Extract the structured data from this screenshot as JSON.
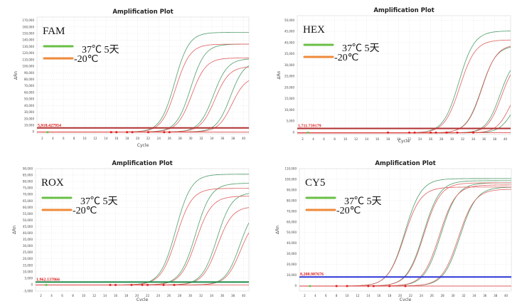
{
  "chart_data": [
    {
      "type": "line",
      "title": "Amplification Plot",
      "dye": "FAM",
      "xlabel": "Cycle",
      "ylabel": "ΔRn",
      "xlim": [
        1,
        41
      ],
      "ylim": [
        -3000,
        175000
      ],
      "xticks": [
        2,
        4,
        6,
        8,
        10,
        12,
        14,
        16,
        18,
        20,
        22,
        24,
        26,
        28,
        30,
        32,
        34,
        36,
        38,
        40
      ],
      "yticks": [
        0,
        10000,
        20000,
        30000,
        40000,
        50000,
        60000,
        70000,
        80000,
        90000,
        100000,
        110000,
        120000,
        130000,
        140000,
        150000,
        160000,
        170000
      ],
      "ytick_labels": [
        "0",
        "10,000",
        "20,000",
        "30,000",
        "40,000",
        "50,000",
        "60,000",
        "70,000",
        "80,000",
        "90,000",
        "100,000",
        "110,000",
        "120,000",
        "130,000",
        "140,000",
        "150,000",
        "160,000",
        "170,000"
      ],
      "grid": true,
      "threshold": {
        "label": "5,918.427954",
        "value": 5918.427954,
        "color": "#b03030"
      },
      "legend": [
        {
          "label": "37℃ 5天",
          "color": "#6abf45"
        },
        {
          "label": "-20℃",
          "color": "#ef8a3a"
        }
      ],
      "series": [
        {
          "name": "37℃ 5天",
          "color": "#4f9e6a",
          "curves": [
            {
              "mid": 27.0,
              "plateau": 152000,
              "slope": 1.35
            },
            {
              "mid": 30.0,
              "plateau": 134000,
              "slope": 1.35
            },
            {
              "mid": 34.3,
              "plateau": 112000,
              "slope": 1.35
            },
            {
              "mid": 37.5,
              "plateau": 108000,
              "slope": 1.3
            }
          ]
        },
        {
          "name": "-20℃",
          "color": "#e06060",
          "curves": [
            {
              "mid": 27.2,
              "plateau": 134000,
              "slope": 1.35
            },
            {
              "mid": 30.2,
              "plateau": 113000,
              "slope": 1.35
            },
            {
              "mid": 34.6,
              "plateau": 100000,
              "slope": 1.35
            },
            {
              "mid": 37.8,
              "plateau": 85000,
              "slope": 1.3
            }
          ]
        }
      ],
      "baseline_markers_x": [
        3,
        15,
        16,
        18,
        19,
        22,
        25,
        26
      ]
    },
    {
      "type": "line",
      "title": "Amplification Plot",
      "dye": "HEX",
      "xlabel": "Cycle",
      "ylabel": "ΔRn",
      "xlim": [
        1,
        41
      ],
      "ylim": [
        -1000,
        52000
      ],
      "xticks": [
        2,
        4,
        6,
        8,
        10,
        12,
        14,
        16,
        18,
        20,
        22,
        24,
        26,
        28,
        30,
        32,
        34,
        36,
        38,
        40
      ],
      "yticks": [
        0,
        5000,
        10000,
        15000,
        20000,
        25000,
        30000,
        35000,
        40000,
        45000,
        50000
      ],
      "ytick_labels": [
        "0",
        "5,000",
        "10,000",
        "15,000",
        "20,000",
        "25,000",
        "30,000",
        "35,000",
        "40,000",
        "45,000",
        "50,000"
      ],
      "grid": true,
      "threshold": {
        "label": "1,711.739179",
        "value": 1711.739179,
        "color": "#b03030"
      },
      "legend": [
        {
          "label": "37℃ 5天",
          "color": "#6abf45"
        },
        {
          "label": "-20℃",
          "color": "#ef8a3a"
        }
      ],
      "series": [
        {
          "name": "37℃ 5天",
          "color": "#4f9e6a",
          "curves": [
            {
              "mid": 31.3,
              "plateau": 45500,
              "slope": 1.45
            },
            {
              "mid": 35.5,
              "plateau": 39000,
              "slope": 1.4
            },
            {
              "mid": 39.0,
              "plateau": 34000,
              "slope": 1.3
            },
            {
              "mid": 41.5,
              "plateau": 20000,
              "slope": 1.3
            }
          ]
        },
        {
          "name": "-20℃",
          "color": "#e06060",
          "curves": [
            {
              "mid": 31.5,
              "plateau": 41500,
              "slope": 1.45
            },
            {
              "mid": 35.6,
              "plateau": 39500,
              "slope": 1.4
            },
            {
              "mid": 39.3,
              "plateau": 33000,
              "slope": 1.3
            },
            {
              "mid": 41.0,
              "plateau": 25000,
              "slope": 1.3
            }
          ]
        }
      ],
      "baseline_markers_x": [
        3,
        18,
        22,
        23,
        26,
        27,
        29,
        31,
        34
      ]
    },
    {
      "type": "line",
      "title": "Amplification Plot",
      "dye": "ROX",
      "xlabel": "Cycle",
      "ylabel": "ΔRn",
      "xlim": [
        1,
        41
      ],
      "ylim": [
        -5000,
        90000
      ],
      "xticks": [
        2,
        4,
        6,
        8,
        10,
        12,
        14,
        16,
        18,
        20,
        22,
        24,
        26,
        28,
        30,
        32,
        34,
        36,
        38,
        40
      ],
      "yticks": [
        -5000,
        0,
        5000,
        10000,
        15000,
        20000,
        25000,
        30000,
        35000,
        40000,
        45000,
        50000,
        55000,
        60000,
        65000,
        70000,
        75000,
        80000,
        85000,
        90000
      ],
      "ytick_labels": [
        "-5,000",
        "0",
        "5,000",
        "10,000",
        "15,000",
        "20,000",
        "25,000",
        "30,000",
        "35,000",
        "40,000",
        "45,000",
        "50,000",
        "55,000",
        "60,000",
        "65,000",
        "70,000",
        "75,000",
        "80,000",
        "85,000",
        "90,000"
      ],
      "grid": true,
      "threshold": {
        "label": "1,962.137866",
        "value": 1962.137866,
        "color": "#1f8a4a"
      },
      "legend": [
        {
          "label": "37℃ 5天",
          "color": "#6abf45"
        },
        {
          "label": "-20℃",
          "color": "#ef8a3a"
        }
      ],
      "series": [
        {
          "name": "37℃ 5天",
          "color": "#4f9e6a",
          "curves": [
            {
              "mid": 27.3,
              "plateau": 86000,
              "slope": 1.45
            },
            {
              "mid": 31.0,
              "plateau": 79000,
              "slope": 1.45
            },
            {
              "mid": 35.0,
              "plateau": 72000,
              "slope": 1.4
            },
            {
              "mid": 39.3,
              "plateau": 62000,
              "slope": 1.35
            }
          ]
        },
        {
          "name": "-20℃",
          "color": "#e06060",
          "curves": [
            {
              "mid": 27.4,
              "plateau": 75000,
              "slope": 1.45
            },
            {
              "mid": 31.1,
              "plateau": 69000,
              "slope": 1.45
            },
            {
              "mid": 35.1,
              "plateau": 61000,
              "slope": 1.4
            },
            {
              "mid": 39.4,
              "plateau": 53000,
              "slope": 1.35
            }
          ]
        }
      ],
      "baseline_markers_x": [
        3,
        15,
        16,
        19,
        21,
        22,
        25,
        27
      ]
    },
    {
      "type": "line",
      "title": "Amplification Plot",
      "dye": "CY5",
      "xlabel": "Cycle",
      "ylabel": "ΔRn",
      "xlim": [
        1,
        41
      ],
      "ylim": [
        -5000,
        110000
      ],
      "xticks": [
        2,
        4,
        6,
        8,
        10,
        12,
        14,
        16,
        18,
        20,
        22,
        24,
        26,
        28,
        30,
        32,
        34,
        36,
        38,
        40
      ],
      "yticks": [
        0,
        10000,
        20000,
        30000,
        40000,
        50000,
        60000,
        70000,
        80000,
        90000,
        100000,
        110000
      ],
      "ytick_labels": [
        "0",
        "10,000",
        "20,000",
        "30,000",
        "40,000",
        "50,000",
        "60,000",
        "70,000",
        "80,000",
        "90,000",
        "100,000",
        "110,000"
      ],
      "grid": true,
      "threshold": {
        "label": "8,208.987676",
        "value": 8208.987676,
        "color": "#2b35d8"
      },
      "legend": [
        {
          "label": "37℃ 5天",
          "color": "#6abf45"
        },
        {
          "label": "-20℃",
          "color": "#ef8a3a"
        }
      ],
      "series": [
        {
          "name": "37℃ 5天",
          "color": "#4f9e6a",
          "curves": [
            {
              "mid": 20.9,
              "plateau": 101000,
              "slope": 1.55
            },
            {
              "mid": 24.4,
              "plateau": 99000,
              "slope": 1.55
            },
            {
              "mid": 27.7,
              "plateau": 97000,
              "slope": 1.55
            },
            {
              "mid": 31.3,
              "plateau": 93000,
              "slope": 1.55
            }
          ]
        },
        {
          "name": "-20℃",
          "color": "#e06060",
          "curves": [
            {
              "mid": 20.8,
              "plateau": 93000,
              "slope": 1.55
            },
            {
              "mid": 24.5,
              "plateau": 97000,
              "slope": 1.55
            },
            {
              "mid": 27.4,
              "plateau": 95000,
              "slope": 1.55
            },
            {
              "mid": 31.0,
              "plateau": 91000,
              "slope": 1.55
            }
          ]
        }
      ],
      "baseline_markers_x": [
        3,
        8,
        10,
        14,
        15,
        18,
        21
      ]
    }
  ]
}
